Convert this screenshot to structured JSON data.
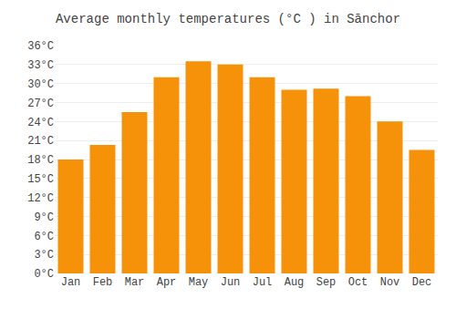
{
  "chart_data": {
    "type": "bar",
    "title": "Average monthly temperatures (°C ) in Sānchor",
    "categories": [
      "Jan",
      "Feb",
      "Mar",
      "Apr",
      "May",
      "Jun",
      "Jul",
      "Aug",
      "Sep",
      "Oct",
      "Nov",
      "Dec"
    ],
    "values": [
      18.0,
      20.3,
      25.5,
      31.0,
      33.5,
      33.0,
      31.0,
      29.0,
      29.2,
      28.0,
      24.0,
      19.5
    ],
    "color": "#F5920A",
    "ylim": [
      0,
      36
    ],
    "yticks": [
      {
        "value": 0,
        "label": "0°C"
      },
      {
        "value": 3,
        "label": "3°C"
      },
      {
        "value": 6,
        "label": "6°C"
      },
      {
        "value": 9,
        "label": "9°C"
      },
      {
        "value": 12,
        "label": "12°C"
      },
      {
        "value": 15,
        "label": "15°C"
      },
      {
        "value": 18,
        "label": "18°C"
      },
      {
        "value": 21,
        "label": "21°C"
      },
      {
        "value": 24,
        "label": "24°C"
      },
      {
        "value": 27,
        "label": "27°C"
      },
      {
        "value": 30,
        "label": "30°C"
      },
      {
        "value": 33,
        "label": "33°C"
      },
      {
        "value": 36,
        "label": "36°C"
      }
    ],
    "grid": true
  }
}
